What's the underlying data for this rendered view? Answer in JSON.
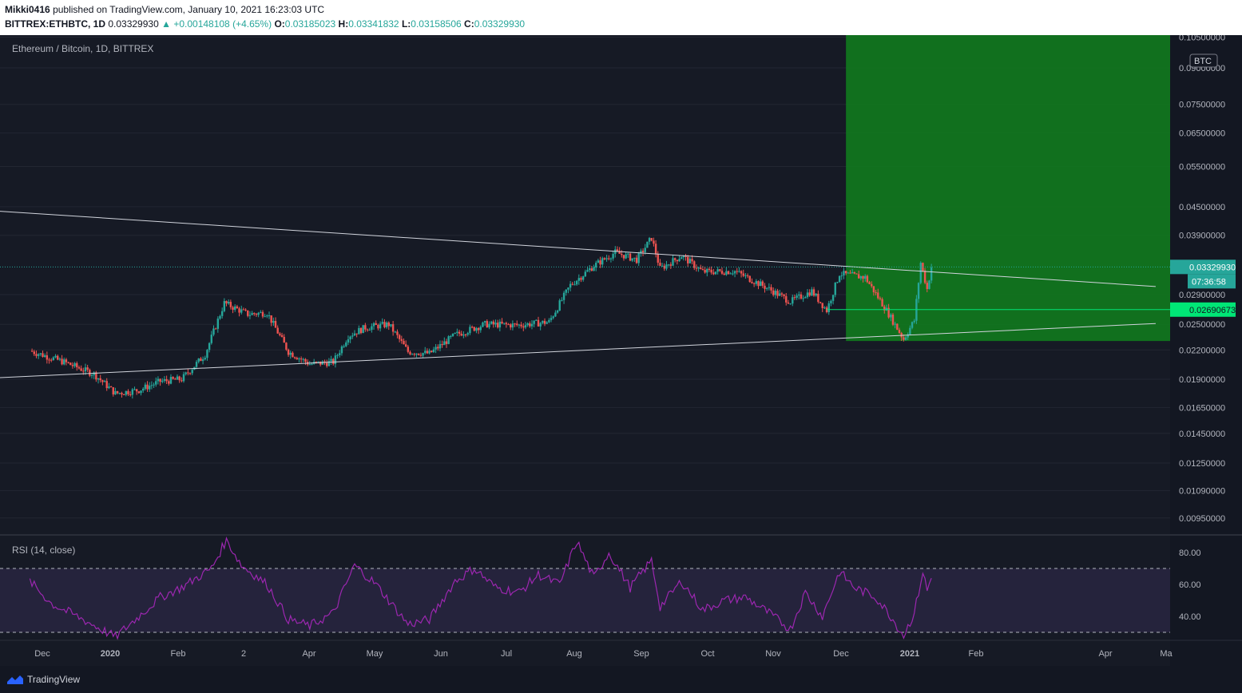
{
  "header": {
    "author": "Mikki0416",
    "published": "published on TradingView.com, January 10, 2021 16:23:03 UTC",
    "symbol": "BITTREX:ETHBTC, 1D",
    "last": "0.03329930",
    "change": "+0.00148108 (+4.65%)",
    "open_label": "O:",
    "open": "0.03185023",
    "high_label": "H:",
    "high": "0.03341832",
    "low_label": "L:",
    "low": "0.03158506",
    "close_label": "C:",
    "close": "0.03329930"
  },
  "chart_data": [
    {
      "type": "candlestick",
      "title": "Ethereum / Bitcoin, 1D, BITTREX",
      "currency": "BTC",
      "yscale": "log",
      "ylim": [
        0.0088,
        0.106
      ],
      "y_ticks": [
        "0.10500000",
        "0.09000000",
        "0.07500000",
        "0.06500000",
        "0.05500000",
        "0.04500000",
        "0.03900000",
        "0.02900000",
        "0.02500000",
        "0.02200000",
        "0.01900000",
        "0.01650000",
        "0.01450000",
        "0.01250000",
        "0.01090000",
        "0.00950000"
      ],
      "x_ticks": [
        "Dec",
        "2020",
        "Feb",
        "2",
        "Apr",
        "May",
        "Jun",
        "Jul",
        "Aug",
        "Sep",
        "Oct",
        "Nov",
        "Dec",
        "2021",
        "Feb",
        "Apr",
        "Ma"
      ],
      "last_price": "0.03329930",
      "countdown": "07:36:58",
      "level_price": "0.02690673",
      "colors": {
        "up": "#26a69a",
        "down": "#ef5350",
        "target_zone": "#117a1e",
        "level": "#00e676"
      },
      "close_series": [
        {
          "date": "2019-11-15",
          "close": 0.0219
        },
        {
          "date": "2019-12-01",
          "close": 0.0207
        },
        {
          "date": "2019-12-15",
          "close": 0.0195
        },
        {
          "date": "2019-12-25",
          "close": 0.0177
        },
        {
          "date": "2020-01-05",
          "close": 0.018
        },
        {
          "date": "2020-01-15",
          "close": 0.0188
        },
        {
          "date": "2020-01-25",
          "close": 0.019
        },
        {
          "date": "2020-02-05",
          "close": 0.0215
        },
        {
          "date": "2020-02-14",
          "close": 0.0278
        },
        {
          "date": "2020-02-25",
          "close": 0.0263
        },
        {
          "date": "2020-03-05",
          "close": 0.0265
        },
        {
          "date": "2020-03-15",
          "close": 0.0218
        },
        {
          "date": "2020-03-25",
          "close": 0.0205
        },
        {
          "date": "2020-04-05",
          "close": 0.0207
        },
        {
          "date": "2020-04-12",
          "close": 0.0236
        },
        {
          "date": "2020-04-20",
          "close": 0.0246
        },
        {
          "date": "2020-05-01",
          "close": 0.025
        },
        {
          "date": "2020-05-10",
          "close": 0.0218
        },
        {
          "date": "2020-05-20",
          "close": 0.0216
        },
        {
          "date": "2020-06-01",
          "close": 0.0237
        },
        {
          "date": "2020-06-15",
          "close": 0.025
        },
        {
          "date": "2020-07-01",
          "close": 0.0249
        },
        {
          "date": "2020-07-15",
          "close": 0.0253
        },
        {
          "date": "2020-07-25",
          "close": 0.0304
        },
        {
          "date": "2020-08-05",
          "close": 0.0335
        },
        {
          "date": "2020-08-15",
          "close": 0.0358
        },
        {
          "date": "2020-08-25",
          "close": 0.0345
        },
        {
          "date": "2020-09-01",
          "close": 0.0385
        },
        {
          "date": "2020-09-05",
          "close": 0.033
        },
        {
          "date": "2020-09-15",
          "close": 0.0352
        },
        {
          "date": "2020-09-25",
          "close": 0.0325
        },
        {
          "date": "2020-10-10",
          "close": 0.0326
        },
        {
          "date": "2020-10-25",
          "close": 0.03
        },
        {
          "date": "2020-11-05",
          "close": 0.028
        },
        {
          "date": "2020-11-15",
          "close": 0.0295
        },
        {
          "date": "2020-11-22",
          "close": 0.0268
        },
        {
          "date": "2020-11-28",
          "close": 0.0322
        },
        {
          "date": "2020-12-10",
          "close": 0.0316
        },
        {
          "date": "2020-12-20",
          "close": 0.0268
        },
        {
          "date": "2020-12-28",
          "close": 0.0232
        },
        {
          "date": "2021-01-02",
          "close": 0.0255
        },
        {
          "date": "2021-01-05",
          "close": 0.034
        },
        {
          "date": "2021-01-08",
          "close": 0.0298
        },
        {
          "date": "2021-01-10",
          "close": 0.0333
        }
      ],
      "trendlines": [
        {
          "name": "upper",
          "from": {
            "date": "2018-12-01",
            "price": 0.0555
          },
          "to": {
            "date": "2021-04-25",
            "price": 0.0302
          }
        },
        {
          "name": "lower",
          "from": {
            "date": "2018-12-01",
            "price": 0.0162
          },
          "to": {
            "date": "2021-04-25",
            "price": 0.0251
          }
        }
      ],
      "target_zone": {
        "from_date": "2020-12-01",
        "to_date": "2021-04-25",
        "low": 0.023,
        "high": 0.106
      }
    },
    {
      "type": "line",
      "title": "RSI (14, close)",
      "ylim": [
        25,
        90
      ],
      "y_ticks": [
        "80.00",
        "60.00",
        "40.00"
      ],
      "bands": [
        30,
        70
      ],
      "color": "#9c27b0",
      "series": [
        {
          "date": "2019-11-15",
          "value": 62
        },
        {
          "date": "2019-11-25",
          "value": 48
        },
        {
          "date": "2019-12-10",
          "value": 38
        },
        {
          "date": "2019-12-25",
          "value": 27
        },
        {
          "date": "2020-01-05",
          "value": 40
        },
        {
          "date": "2020-01-15",
          "value": 52
        },
        {
          "date": "2020-01-25",
          "value": 58
        },
        {
          "date": "2020-02-08",
          "value": 70
        },
        {
          "date": "2020-02-15",
          "value": 88
        },
        {
          "date": "2020-02-22",
          "value": 72
        },
        {
          "date": "2020-03-05",
          "value": 60
        },
        {
          "date": "2020-03-15",
          "value": 38
        },
        {
          "date": "2020-03-25",
          "value": 34
        },
        {
          "date": "2020-04-05",
          "value": 42
        },
        {
          "date": "2020-04-15",
          "value": 72
        },
        {
          "date": "2020-04-25",
          "value": 60
        },
        {
          "date": "2020-05-10",
          "value": 35
        },
        {
          "date": "2020-05-20",
          "value": 38
        },
        {
          "date": "2020-06-01",
          "value": 62
        },
        {
          "date": "2020-06-10",
          "value": 70
        },
        {
          "date": "2020-06-20",
          "value": 58
        },
        {
          "date": "2020-07-01",
          "value": 55
        },
        {
          "date": "2020-07-10",
          "value": 66
        },
        {
          "date": "2020-07-20",
          "value": 60
        },
        {
          "date": "2020-07-28",
          "value": 87
        },
        {
          "date": "2020-08-05",
          "value": 64
        },
        {
          "date": "2020-08-12",
          "value": 80
        },
        {
          "date": "2020-08-22",
          "value": 58
        },
        {
          "date": "2020-09-01",
          "value": 75
        },
        {
          "date": "2020-09-05",
          "value": 46
        },
        {
          "date": "2020-09-15",
          "value": 62
        },
        {
          "date": "2020-09-25",
          "value": 44
        },
        {
          "date": "2020-10-05",
          "value": 50
        },
        {
          "date": "2020-10-15",
          "value": 52
        },
        {
          "date": "2020-10-25",
          "value": 43
        },
        {
          "date": "2020-11-05",
          "value": 32
        },
        {
          "date": "2020-11-12",
          "value": 55
        },
        {
          "date": "2020-11-20",
          "value": 40
        },
        {
          "date": "2020-11-28",
          "value": 68
        },
        {
          "date": "2020-12-05",
          "value": 58
        },
        {
          "date": "2020-12-15",
          "value": 52
        },
        {
          "date": "2020-12-22",
          "value": 40
        },
        {
          "date": "2020-12-28",
          "value": 28
        },
        {
          "date": "2021-01-02",
          "value": 42
        },
        {
          "date": "2021-01-06",
          "value": 68
        },
        {
          "date": "2021-01-08",
          "value": 56
        },
        {
          "date": "2021-01-10",
          "value": 64
        }
      ]
    }
  ],
  "footer": {
    "brand": "TradingView"
  }
}
